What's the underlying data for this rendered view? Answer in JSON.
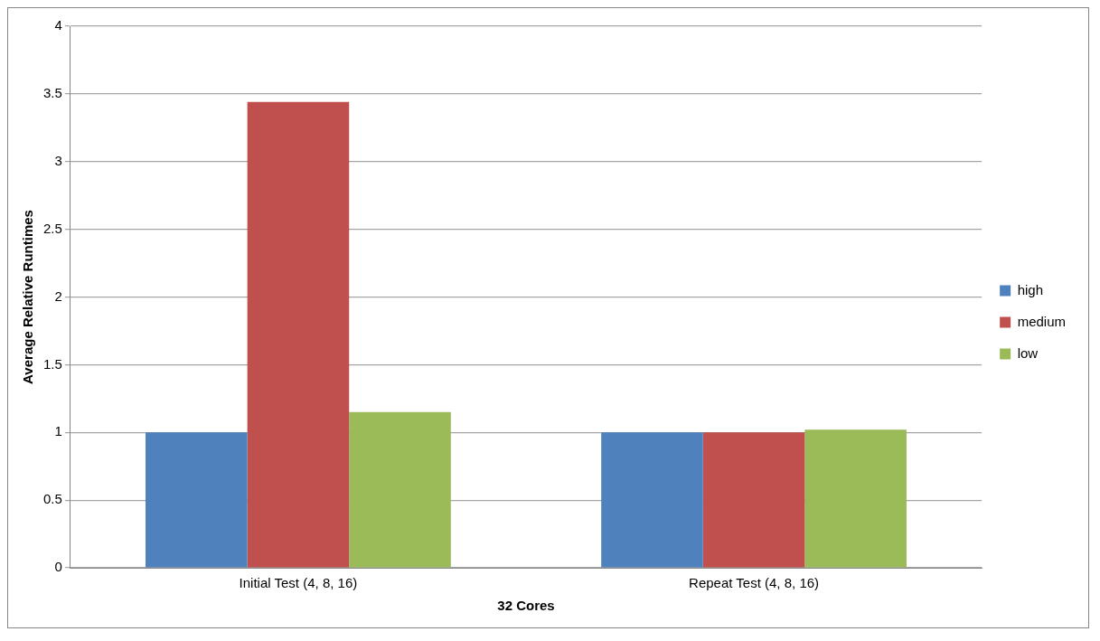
{
  "chart_data": {
    "type": "bar",
    "xlabel": "32 Cores",
    "ylabel": "Average Relative Runtimes",
    "categories": [
      "Initial Test (4, 8, 16)",
      "Repeat Test (4, 8, 16)"
    ],
    "series": [
      {
        "name": "high",
        "color": "#4f81bd",
        "values": [
          1.0,
          1.0
        ]
      },
      {
        "name": "medium",
        "color": "#c0504d",
        "values": [
          3.44,
          1.0
        ]
      },
      {
        "name": "low",
        "color": "#9bbb59",
        "values": [
          1.15,
          1.02
        ]
      }
    ],
    "ylim": [
      0,
      4
    ],
    "yticks": [
      0,
      0.5,
      1,
      1.5,
      2,
      2.5,
      3,
      3.5,
      4
    ],
    "grid": "y",
    "legend": "right"
  }
}
